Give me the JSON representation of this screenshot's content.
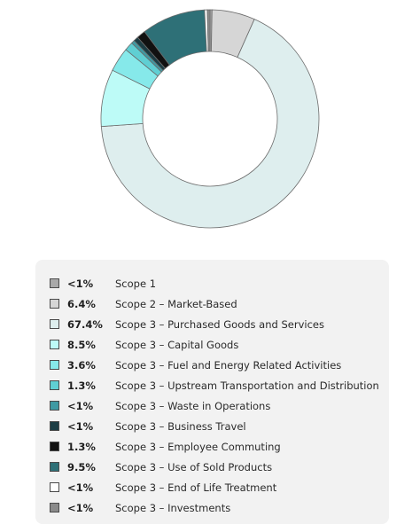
{
  "chart_data": {
    "type": "pie",
    "donut": true,
    "legend_position": "bottom",
    "series": [
      {
        "label": "Scope 1",
        "pct_text": "<1%",
        "value": 0.3,
        "color": "#a9a9a9"
      },
      {
        "label": "Scope 2 – Market-Based",
        "pct_text": "6.4%",
        "value": 6.4,
        "color": "#d6d6d6"
      },
      {
        "label": "Scope 3 – Purchased Goods and Services",
        "pct_text": "67.4%",
        "value": 67.4,
        "color": "#deeeee"
      },
      {
        "label": "Scope 3 – Capital Goods",
        "pct_text": "8.5%",
        "value": 8.5,
        "color": "#bdfbf7"
      },
      {
        "label": "Scope 3 – Fuel and Energy Related Activities",
        "pct_text": "3.6%",
        "value": 3.6,
        "color": "#86e9ea"
      },
      {
        "label": "Scope 3 – Upstream Transportation and Distribution",
        "pct_text": "1.3%",
        "value": 1.3,
        "color": "#5fcfd3"
      },
      {
        "label": "Scope 3 – Waste in Operations",
        "pct_text": "<1%",
        "value": 0.5,
        "color": "#3f9aa3"
      },
      {
        "label": "Scope 3 – Business Travel",
        "pct_text": "<1%",
        "value": 0.7,
        "color": "#1c3d44"
      },
      {
        "label": "Scope 3 – Employee Commuting",
        "pct_text": "1.3%",
        "value": 1.3,
        "color": "#111111"
      },
      {
        "label": "Scope 3 – Use of Sold Products",
        "pct_text": "9.5%",
        "value": 9.5,
        "color": "#2e7077"
      },
      {
        "label": "Scope 3 – End of Life Treatment",
        "pct_text": "<1%",
        "value": 0.4,
        "color": "#ffffff"
      },
      {
        "label": "Scope 3 – Investments",
        "pct_text": "<1%",
        "value": 0.4,
        "color": "#8a8a8a"
      }
    ]
  }
}
